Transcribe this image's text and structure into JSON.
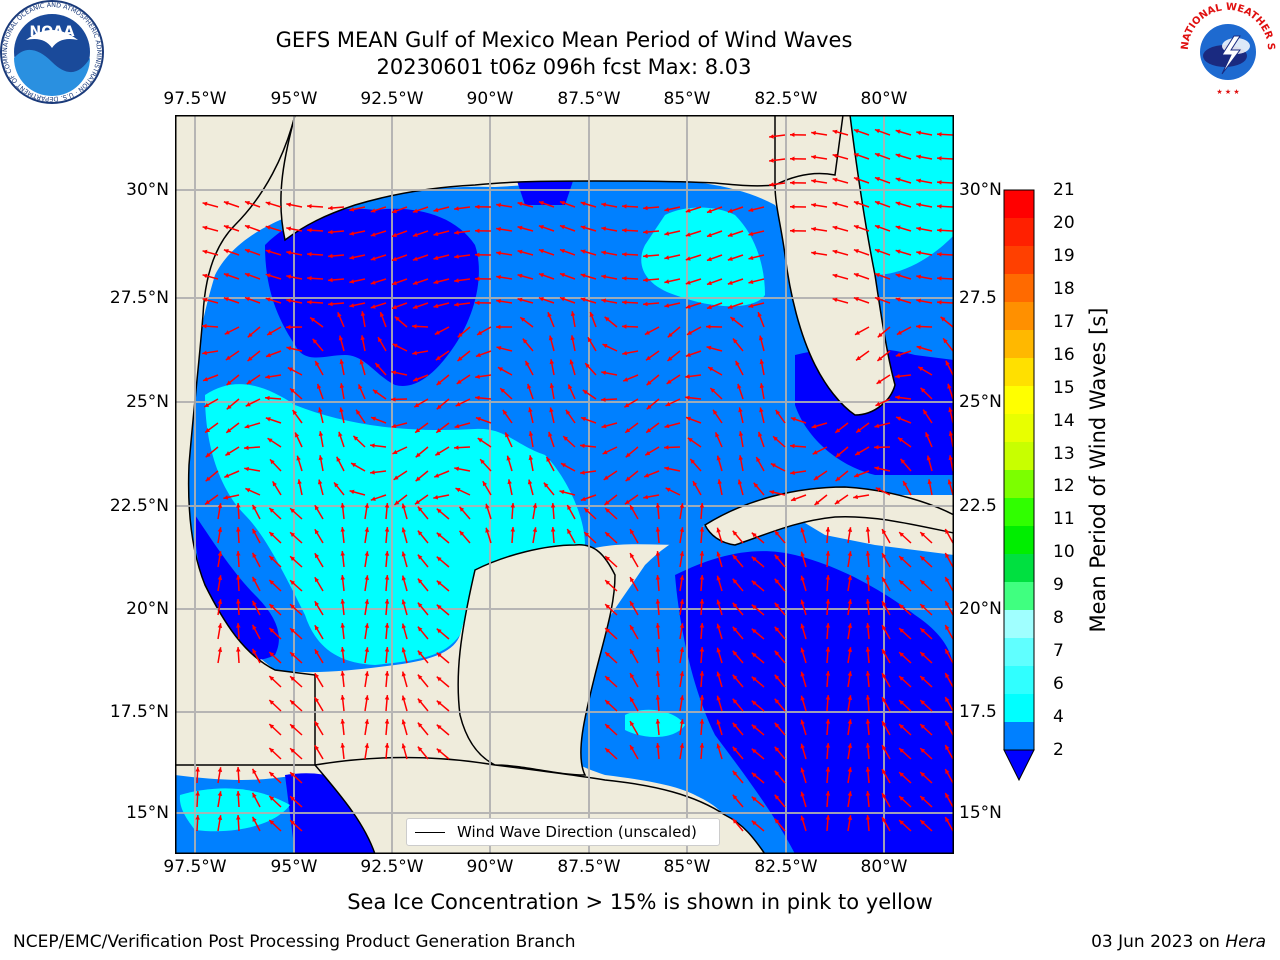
{
  "header": {
    "title_line1": "GEFS MEAN Gulf of Mexico Mean Period of Wind Waves",
    "title_line2": "20230601 t06z 096h fcst   Max: 8.03"
  },
  "axes": {
    "lon_labels": [
      "97.5°W",
      "95°W",
      "92.5°W",
      "90°W",
      "87.5°W",
      "85°W",
      "82.5°W",
      "80°W"
    ],
    "lat_labels_left": [
      "30°N",
      "27.5°N",
      "25°N",
      "22.5°N",
      "20°N",
      "17.5°N",
      "15°N"
    ],
    "lat_labels_right": [
      "30°N",
      "27.5",
      "25°N",
      "22.5",
      "20°N",
      "17.5",
      "15°N"
    ]
  },
  "legend": {
    "label": "Wind Wave Direction (unscaled)"
  },
  "colorbar": {
    "label": "Mean Period of Wind Waves [s]",
    "ticks": [
      "21",
      "20",
      "19",
      "18",
      "17",
      "16",
      "15",
      "14",
      "13",
      "12",
      "11",
      "10",
      "9",
      "8",
      "7",
      "6",
      "4",
      "2"
    ],
    "colors_top_to_bottom": [
      "#ff0000",
      "#ff2000",
      "#ff4000",
      "#ff6a00",
      "#ff9000",
      "#ffb800",
      "#ffe000",
      "#ffff00",
      "#e8ff00",
      "#c8ff00",
      "#7cff00",
      "#30ff00",
      "#00ee00",
      "#00e040",
      "#40ff80",
      "#a0ffff",
      "#60ffff",
      "#30ffff",
      "#00ffff",
      "#0080ff"
    ],
    "underflow_color": "#0000ff"
  },
  "map_colors": {
    "land": "#efecdc",
    "dark_blue": "#0000ff",
    "mid_blue": "#0080ff",
    "cyan": "#00ffff",
    "light_cyan": "#60ffff",
    "arrow": "#ff0000",
    "grid": "#b0b0b0"
  },
  "footer": {
    "note": "Sea Ice Concentration > 15% is shown in pink to yellow",
    "credit_left": "NCEP/EMC/Verification Post Processing Product Generation Branch",
    "credit_right_prefix": "03 Jun 2023 on ",
    "credit_right_host": "Hera"
  },
  "logos": {
    "noaa_text": "NOAA",
    "noaa_ring": "NATIONAL OCEANIC AND ATMOSPHERIC ADMINISTRATION · U.S. DEPARTMENT OF COMMERCE ·",
    "nws_ring": "NATIONAL WEATHER SERVICE"
  },
  "icons": [
    "noaa-logo",
    "nws-logo",
    "wind-arrow"
  ]
}
